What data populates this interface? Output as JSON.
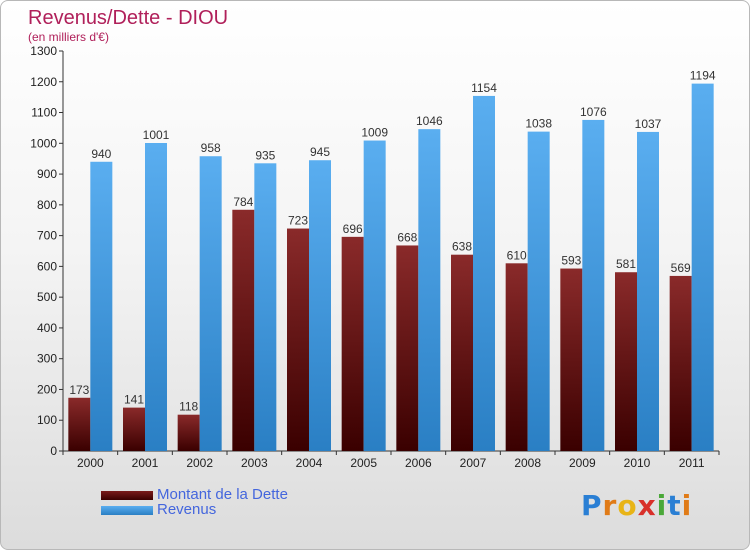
{
  "chart_data": {
    "type": "bar",
    "title": "Revenus/Dette - DIOU",
    "subtitle": "(en milliers d'€)",
    "categories": [
      "2000",
      "2001",
      "2002",
      "2003",
      "2004",
      "2005",
      "2006",
      "2007",
      "2008",
      "2009",
      "2010",
      "2011"
    ],
    "series": [
      {
        "name": "Montant de la Dette",
        "color": "#7a1a1a",
        "values": [
          173,
          141,
          118,
          784,
          723,
          696,
          668,
          638,
          610,
          593,
          581,
          569
        ]
      },
      {
        "name": "Revenus",
        "color": "#3f9be0",
        "values": [
          940,
          1001,
          958,
          935,
          945,
          1009,
          1046,
          1154,
          1038,
          1076,
          1037,
          1194
        ]
      }
    ],
    "ylim": [
      0,
      1300
    ],
    "yticks": [
      0,
      100,
      200,
      300,
      400,
      500,
      600,
      700,
      800,
      900,
      1000,
      1100,
      1200,
      1300
    ],
    "grid": false,
    "legend_position": "bottom-left",
    "data_labels": true
  },
  "logo": {
    "letters": [
      {
        "ch": "P",
        "color": "#2a7fd4"
      },
      {
        "ch": "r",
        "color": "#e07b17"
      },
      {
        "ch": "o",
        "color": "#e8b417"
      },
      {
        "ch": "x",
        "color": "#d8302a"
      },
      {
        "ch": "i",
        "color": "#4aa838"
      },
      {
        "ch": "t",
        "color": "#2a7fd4"
      },
      {
        "ch": "i",
        "color": "#e07b17"
      }
    ]
  }
}
